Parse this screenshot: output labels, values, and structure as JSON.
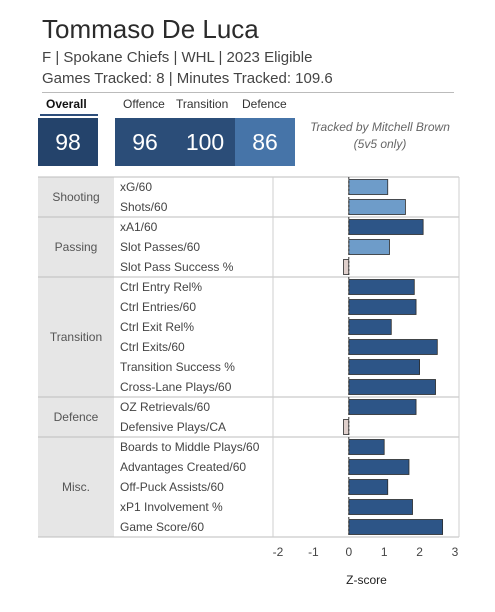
{
  "player": {
    "name": "Tommaso De Luca",
    "info": "F | Spokane Chiefs | WHL | 2023 Eligible",
    "tracked": "Games Tracked: 8 | Minutes Tracked: 109.6"
  },
  "scores": {
    "overall_label": "Overall",
    "overall": "98",
    "offence_label": "Offence",
    "offence": "96",
    "transition_label": "Transition",
    "transition": "100",
    "defence_label": "Defence",
    "defence": "86"
  },
  "note": {
    "line1": "Tracked by Mitchell Brown",
    "line2": "(5v5 only)"
  },
  "colors": {
    "bar_dark": "#2d5587",
    "bar_light": "#6e9cc9",
    "bar_negative": "#e0d0cc",
    "category_bg": "#e6e6e6"
  },
  "chart_data": {
    "type": "bar",
    "orientation": "horizontal",
    "xlabel": "Z-score",
    "xlim": [
      -2,
      3
    ],
    "xticks": [
      "-2",
      "-1",
      "0",
      "1",
      "2",
      "3"
    ],
    "grid": false,
    "groups": [
      {
        "category": "Shooting",
        "metrics": [
          {
            "label": "xG/60",
            "value": 1.1,
            "shade": "light"
          },
          {
            "label": "Shots/60",
            "value": 1.6,
            "shade": "light"
          }
        ]
      },
      {
        "category": "Passing",
        "metrics": [
          {
            "label": "xA1/60",
            "value": 2.1,
            "shade": "dark"
          },
          {
            "label": "Slot Passes/60",
            "value": 1.15,
            "shade": "light"
          },
          {
            "label": "Slot Pass Success %",
            "value": -0.15,
            "shade": "negative"
          }
        ]
      },
      {
        "category": "Transition",
        "metrics": [
          {
            "label": "Ctrl Entry Rel%",
            "value": 1.85,
            "shade": "dark"
          },
          {
            "label": "Ctrl Entries/60",
            "value": 1.9,
            "shade": "dark"
          },
          {
            "label": "Ctrl Exit Rel%",
            "value": 1.2,
            "shade": "dark"
          },
          {
            "label": "Ctrl Exits/60",
            "value": 2.5,
            "shade": "dark"
          },
          {
            "label": "Transition Success %",
            "value": 2.0,
            "shade": "dark"
          },
          {
            "label": "Cross-Lane Plays/60",
            "value": 2.45,
            "shade": "dark"
          }
        ]
      },
      {
        "category": "Defence",
        "metrics": [
          {
            "label": "OZ Retrievals/60",
            "value": 1.9,
            "shade": "dark"
          },
          {
            "label": "Defensive Plays/CA",
            "value": -0.15,
            "shade": "negative"
          }
        ]
      },
      {
        "category": "Misc.",
        "metrics": [
          {
            "label": "Boards to Middle Plays/60",
            "value": 1.0,
            "shade": "dark"
          },
          {
            "label": "Advantages Created/60",
            "value": 1.7,
            "shade": "dark"
          },
          {
            "label": "Off-Puck Assists/60",
            "value": 1.1,
            "shade": "dark"
          },
          {
            "label": "xP1 Involvement %",
            "value": 1.8,
            "shade": "dark"
          },
          {
            "label": "Game Score/60",
            "value": 2.65,
            "shade": "dark"
          }
        ]
      }
    ]
  }
}
